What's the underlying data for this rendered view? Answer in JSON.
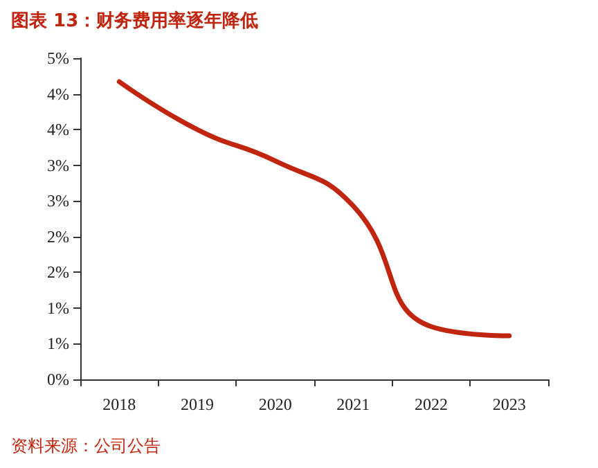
{
  "chart_data": {
    "type": "line",
    "title": "图表 13：财务费用率逐年降低",
    "categories": [
      "2018",
      "2019",
      "2020",
      "2021",
      "2022",
      "2023"
    ],
    "series": [
      {
        "color": "#c0250f",
        "values": [
          4.17,
          3.5,
          3.06,
          2.43,
          0.74,
          0.61
        ]
      }
    ],
    "ylim": [
      0,
      4.5
    ],
    "yticks": [
      {
        "value": 0,
        "label": "0%"
      },
      {
        "value": 0.5,
        "label": "1%"
      },
      {
        "value": 1,
        "label": "1%"
      },
      {
        "value": 1.5,
        "label": "2%"
      },
      {
        "value": 2,
        "label": "2%"
      },
      {
        "value": 2.5,
        "label": "3%"
      },
      {
        "value": 3,
        "label": "3%"
      },
      {
        "value": 3.5,
        "label": "4%"
      },
      {
        "value": 4,
        "label": "4%"
      },
      {
        "value": 4.5,
        "label": "5%"
      }
    ],
    "grid": false,
    "marker": "none",
    "line_style": "solid",
    "annotations": [
      "资料来源：公司公告"
    ]
  }
}
